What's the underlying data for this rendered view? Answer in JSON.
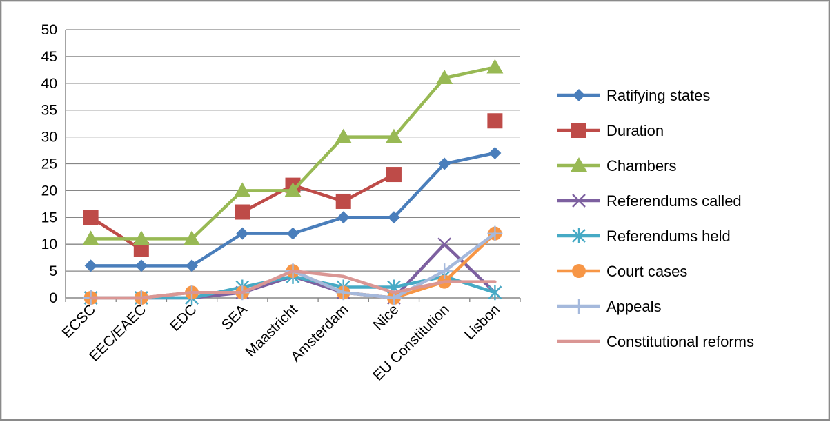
{
  "chart_data": {
    "type": "line",
    "title": "",
    "xlabel": "",
    "ylabel": "",
    "ylim": [
      0,
      50
    ],
    "yticks": [
      0,
      5,
      10,
      15,
      20,
      25,
      30,
      35,
      40,
      45,
      50
    ],
    "grid": "horizontal",
    "legend_position": "right",
    "categories": [
      "ECSC",
      "EEC/EAEC",
      "EDC",
      "SEA",
      "Maastricht",
      "Amsterdam",
      "Nice",
      "EU Constitution",
      "Lisbon"
    ],
    "series": [
      {
        "name": "Ratifying states",
        "color": "#4a7ebb",
        "marker": "diamond",
        "values": [
          6,
          6,
          6,
          12,
          12,
          15,
          15,
          25,
          27
        ]
      },
      {
        "name": "Duration",
        "color": "#be4b48",
        "marker": "square",
        "values": [
          15,
          9,
          null,
          16,
          21,
          18,
          23,
          null,
          33
        ]
      },
      {
        "name": "Chambers",
        "color": "#98b954",
        "marker": "triangle",
        "values": [
          11,
          11,
          11,
          20,
          20,
          30,
          30,
          41,
          43
        ]
      },
      {
        "name": "Referendums called",
        "color": "#7d60a0",
        "marker": "x",
        "values": [
          0,
          0,
          0,
          1,
          4,
          1,
          0,
          10,
          1
        ]
      },
      {
        "name": "Referendums held",
        "color": "#46aac5",
        "marker": "asterisk",
        "values": [
          0,
          0,
          0,
          2,
          4,
          2,
          2,
          4,
          1
        ]
      },
      {
        "name": "Court cases",
        "color": "#f79646",
        "marker": "circle",
        "values": [
          0,
          0,
          1,
          1,
          5,
          1,
          0,
          3,
          12
        ]
      },
      {
        "name": "Appeals",
        "color": "#a5b9dc",
        "marker": "plus",
        "values": [
          0,
          0,
          1,
          1,
          5,
          1,
          0,
          5,
          12
        ]
      },
      {
        "name": "Constitutional reforms",
        "color": "#da9694",
        "marker": "none",
        "values": [
          0,
          0,
          1,
          1,
          5,
          4,
          1,
          3,
          3
        ]
      }
    ]
  }
}
